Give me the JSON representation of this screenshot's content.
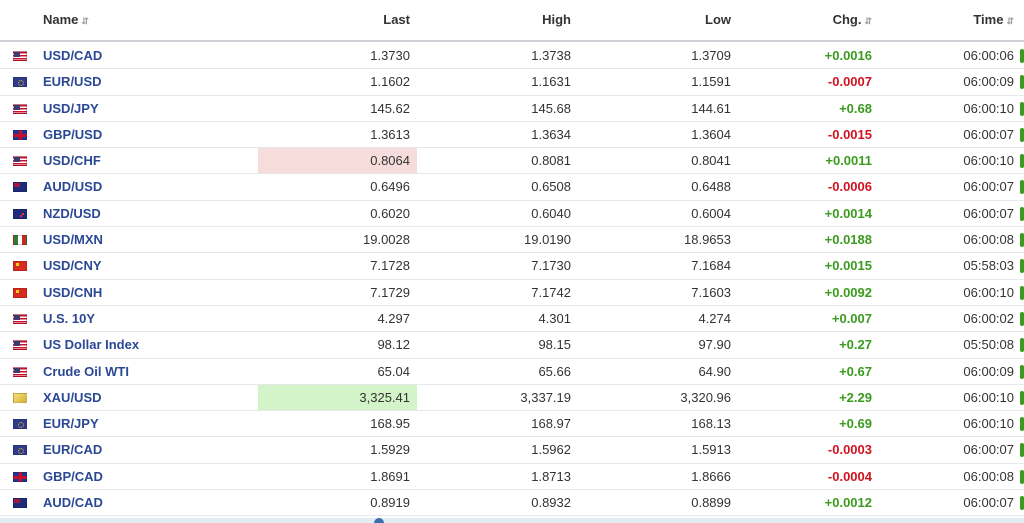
{
  "header": {
    "name": "Name",
    "last": "Last",
    "high": "High",
    "low": "Low",
    "chg": "Chg.",
    "time": "Time"
  },
  "rows": [
    {
      "flag": "us",
      "name": "USD/CAD",
      "last": "1.3730",
      "high": "1.3738",
      "low": "1.3709",
      "chg": "+0.0016",
      "dir": "pos",
      "time": "06:00:06"
    },
    {
      "flag": "eu",
      "name": "EUR/USD",
      "last": "1.1602",
      "high": "1.1631",
      "low": "1.1591",
      "chg": "-0.0007",
      "dir": "neg",
      "time": "06:00:09"
    },
    {
      "flag": "us",
      "name": "USD/JPY",
      "last": "145.62",
      "high": "145.68",
      "low": "144.61",
      "chg": "+0.68",
      "dir": "pos",
      "time": "06:00:10"
    },
    {
      "flag": "gb",
      "name": "GBP/USD",
      "last": "1.3613",
      "high": "1.3634",
      "low": "1.3604",
      "chg": "-0.0015",
      "dir": "neg",
      "time": "06:00:07"
    },
    {
      "flag": "us",
      "name": "USD/CHF",
      "last": "0.8064",
      "high": "0.8081",
      "low": "0.8041",
      "chg": "+0.0011",
      "dir": "pos",
      "time": "06:00:10",
      "highlight": "down"
    },
    {
      "flag": "au",
      "name": "AUD/USD",
      "last": "0.6496",
      "high": "0.6508",
      "low": "0.6488",
      "chg": "-0.0006",
      "dir": "neg",
      "time": "06:00:07"
    },
    {
      "flag": "nz",
      "name": "NZD/USD",
      "last": "0.6020",
      "high": "0.6040",
      "low": "0.6004",
      "chg": "+0.0014",
      "dir": "pos",
      "time": "06:00:07"
    },
    {
      "flag": "mx",
      "name": "USD/MXN",
      "last": "19.0028",
      "high": "19.0190",
      "low": "18.9653",
      "chg": "+0.0188",
      "dir": "pos",
      "time": "06:00:08"
    },
    {
      "flag": "cn",
      "name": "USD/CNY",
      "last": "7.1728",
      "high": "7.1730",
      "low": "7.1684",
      "chg": "+0.0015",
      "dir": "pos",
      "time": "05:58:03"
    },
    {
      "flag": "cn",
      "name": "USD/CNH",
      "last": "7.1729",
      "high": "7.1742",
      "low": "7.1603",
      "chg": "+0.0092",
      "dir": "pos",
      "time": "06:00:10"
    },
    {
      "flag": "us",
      "name": "U.S. 10Y",
      "last": "4.297",
      "high": "4.301",
      "low": "4.274",
      "chg": "+0.007",
      "dir": "pos",
      "time": "06:00:02"
    },
    {
      "flag": "us",
      "name": "US Dollar Index",
      "last": "98.12",
      "high": "98.15",
      "low": "97.90",
      "chg": "+0.27",
      "dir": "pos",
      "time": "05:50:08"
    },
    {
      "flag": "us",
      "name": "Crude Oil WTI",
      "last": "65.04",
      "high": "65.66",
      "low": "64.90",
      "chg": "+0.67",
      "dir": "pos",
      "time": "06:00:09"
    },
    {
      "flag": "gold",
      "name": "XAU/USD",
      "last": "3,325.41",
      "high": "3,337.19",
      "low": "3,320.96",
      "chg": "+2.29",
      "dir": "pos",
      "time": "06:00:10",
      "highlight": "up"
    },
    {
      "flag": "eu",
      "name": "EUR/JPY",
      "last": "168.95",
      "high": "168.97",
      "low": "168.13",
      "chg": "+0.69",
      "dir": "pos",
      "time": "06:00:10"
    },
    {
      "flag": "eu",
      "name": "EUR/CAD",
      "last": "1.5929",
      "high": "1.5962",
      "low": "1.5913",
      "chg": "-0.0003",
      "dir": "neg",
      "time": "06:00:07"
    },
    {
      "flag": "gb",
      "name": "GBP/CAD",
      "last": "1.8691",
      "high": "1.8713",
      "low": "1.8666",
      "chg": "-0.0004",
      "dir": "neg",
      "time": "06:00:08"
    },
    {
      "flag": "au",
      "name": "AUD/CAD",
      "last": "0.8919",
      "high": "0.8932",
      "low": "0.8899",
      "chg": "+0.0012",
      "dir": "pos",
      "time": "06:00:07"
    }
  ],
  "colors": {
    "positive": "#3b9b1f",
    "negative": "#d0141f",
    "link": "#2a4894"
  }
}
